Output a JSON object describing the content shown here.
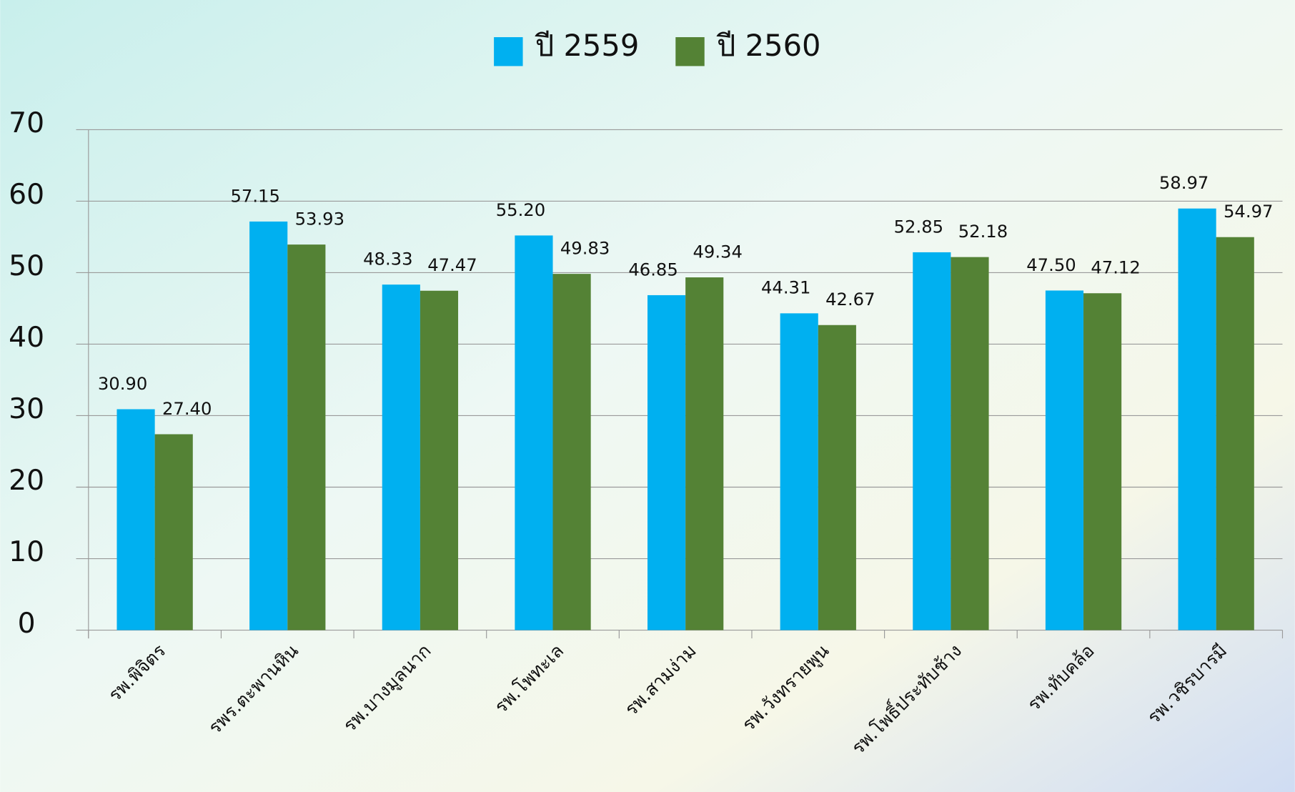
{
  "chart_data": {
    "type": "bar",
    "categories": [
      "รพ.พิจิตร",
      "รพร.ตะพานหิน",
      "รพ.บางมูลนาก",
      "รพ.โพทะเล",
      "รพ.สามง่าม",
      "รพ.วังทรายพูน",
      "รพ.โพธิ์ประทับช้าง",
      "รพ.ทับคล้อ",
      "รพ.วชิรบารมี"
    ],
    "series": [
      {
        "name": "ปี 2559",
        "color": "#00b0f0",
        "values": [
          30.9,
          57.15,
          48.33,
          55.2,
          46.85,
          44.31,
          52.85,
          47.5,
          58.97
        ],
        "value_labels": [
          "30.90",
          "57.15",
          "48.33",
          "55.20",
          "46.85",
          "44.31",
          "52.85",
          "47.50",
          "58.97"
        ]
      },
      {
        "name": "ปี 2560",
        "color": "#548235",
        "values": [
          27.4,
          53.93,
          47.47,
          49.83,
          49.34,
          42.67,
          52.18,
          47.12,
          54.97
        ],
        "value_labels": [
          "27.40",
          "53.93",
          "47.47",
          "49.83",
          "49.34",
          "42.67",
          "52.18",
          "47.12",
          "54.97"
        ]
      }
    ],
    "ylim": [
      0,
      70
    ],
    "yticks": [
      0,
      10,
      20,
      30,
      40,
      50,
      60,
      70
    ],
    "grid": true,
    "legend": "top"
  }
}
